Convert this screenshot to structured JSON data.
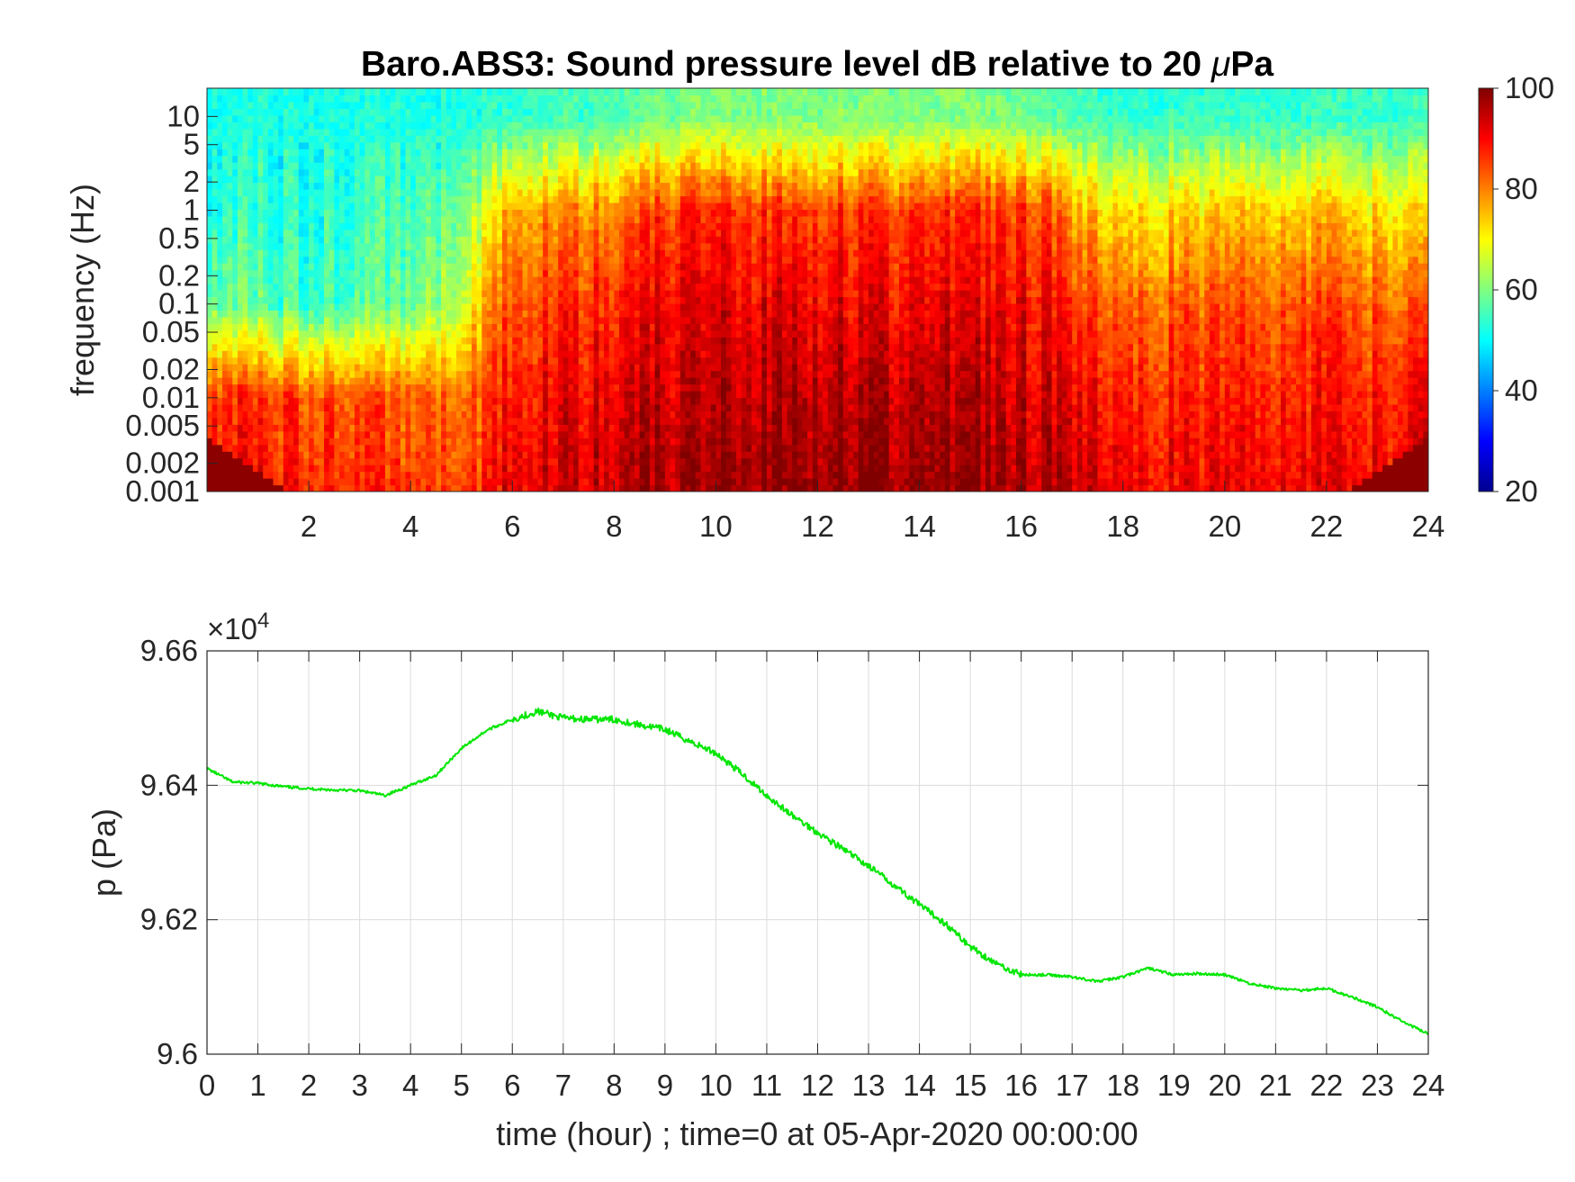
{
  "spectrogram": {
    "title_main": "Baro.ABS3: Sound pressure level dB relative to 20 ",
    "title_mu": "μ",
    "title_tail": "Pa",
    "ylabel": "frequency (Hz)",
    "y_ticks": [
      "10",
      "5",
      "2",
      "1",
      "0.5",
      "0.2",
      "0.1",
      "0.05",
      "0.02",
      "0.01",
      "0.005",
      "0.002",
      "0.001"
    ],
    "x_ticks": [
      "2",
      "4",
      "6",
      "8",
      "10",
      "12",
      "14",
      "16",
      "18",
      "20",
      "22",
      "24"
    ],
    "colorbar_ticks": [
      "100",
      "80",
      "60",
      "40",
      "20"
    ]
  },
  "pressure": {
    "multiplier_base": "×10",
    "multiplier_exp": "4",
    "ylabel": "p (Pa)",
    "xlabel": "time (hour) ; time=0 at 05-Apr-2020 00:00:00",
    "y_ticks": [
      "9.66",
      "9.64",
      "9.62",
      "9.6"
    ],
    "x_ticks": [
      "0",
      "1",
      "2",
      "3",
      "4",
      "5",
      "6",
      "7",
      "8",
      "9",
      "10",
      "11",
      "12",
      "13",
      "14",
      "15",
      "16",
      "17",
      "18",
      "19",
      "20",
      "21",
      "22",
      "23",
      "24"
    ]
  },
  "colors": {
    "pressure_line": "#00e600",
    "grid": "#dcdcdc",
    "axis": "#262626"
  },
  "chart_data": [
    {
      "type": "heatmap",
      "title": "Baro.ABS3: Sound pressure level dB relative to 20 μPa",
      "ylabel": "frequency (Hz)",
      "y_scale": "log",
      "ylim": [
        0.001,
        20
      ],
      "xlim": [
        0,
        24
      ],
      "colorbar_range": [
        20,
        100
      ],
      "colormap": "jet",
      "time_hours": [
        0,
        2,
        4,
        5,
        5.5,
        6,
        8,
        9.5,
        11,
        13,
        15,
        16.5,
        17,
        18,
        20,
        22,
        23.5,
        24
      ],
      "level_at_0p01Hz_dB": [
        88,
        85,
        82,
        82,
        85,
        90,
        92,
        95,
        96,
        96,
        95,
        93,
        90,
        88,
        88,
        88,
        88,
        90
      ],
      "level_at_0p1Hz_dB": [
        60,
        55,
        58,
        65,
        78,
        85,
        88,
        92,
        92,
        91,
        91,
        90,
        85,
        82,
        84,
        84,
        82,
        80
      ],
      "level_at_1Hz_dB": [
        54,
        53,
        55,
        60,
        68,
        78,
        80,
        88,
        86,
        86,
        86,
        85,
        75,
        72,
        74,
        74,
        72,
        70
      ],
      "level_at_10Hz_dB": [
        52,
        52,
        52,
        52,
        53,
        54,
        56,
        60,
        60,
        60,
        60,
        58,
        55,
        54,
        54,
        54,
        54,
        54
      ]
    },
    {
      "type": "line",
      "xlabel": "time (hour) ; time=0 at 05-Apr-2020 00:00:00",
      "ylabel": "p (Pa)",
      "xlim": [
        0,
        24
      ],
      "ylim": [
        96000,
        96600
      ],
      "grid": true,
      "x": [
        0,
        0.5,
        1,
        1.5,
        2,
        2.5,
        3,
        3.5,
        4,
        4.5,
        5,
        5.5,
        6,
        6.5,
        7,
        7.5,
        8,
        8.5,
        9,
        9.5,
        10,
        10.5,
        11,
        11.5,
        12,
        12.5,
        13,
        13.5,
        14,
        14.5,
        15,
        15.5,
        16,
        16.5,
        17,
        17.5,
        18,
        18.5,
        19,
        19.5,
        20,
        20.5,
        21,
        21.5,
        22,
        22.5,
        23,
        23.5,
        24
      ],
      "y": [
        96425,
        96405,
        96403,
        96398,
        96395,
        96393,
        96392,
        96385,
        96400,
        96415,
        96455,
        96482,
        96498,
        96510,
        96500,
        96498,
        96498,
        96490,
        96483,
        96465,
        96448,
        96418,
        96385,
        96355,
        96330,
        96305,
        96280,
        96252,
        96222,
        96195,
        96160,
        96135,
        96118,
        96118,
        96115,
        96108,
        96115,
        96128,
        96118,
        96120,
        96118,
        96105,
        96098,
        96095,
        96098,
        96085,
        96070,
        96048,
        96030
      ]
    }
  ]
}
